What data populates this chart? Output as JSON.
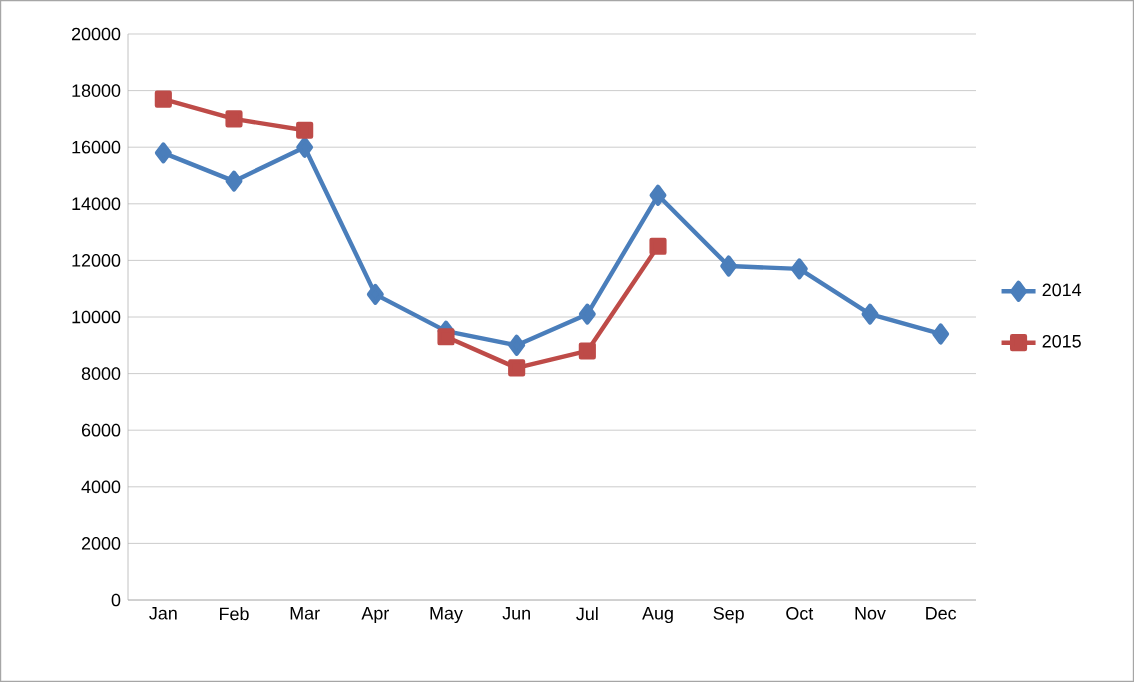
{
  "chart_data": {
    "type": "line",
    "categories": [
      "Jan",
      "Feb",
      "Mar",
      "Apr",
      "May",
      "Jun",
      "Jul",
      "Aug",
      "Sep",
      "Oct",
      "Nov",
      "Dec"
    ],
    "series": [
      {
        "name": "2014",
        "color": "#4a7ebb",
        "marker": "diamond",
        "values": [
          15800,
          14800,
          16000,
          10800,
          9500,
          9000,
          10100,
          14300,
          11800,
          11700,
          10100,
          9400
        ]
      },
      {
        "name": "2015",
        "color": "#be4b48",
        "marker": "square",
        "values": [
          17700,
          17000,
          16600,
          null,
          9300,
          8200,
          8800,
          12500,
          null,
          null,
          null,
          null
        ]
      }
    ],
    "ylim": [
      0,
      20000
    ],
    "yticks": [
      0,
      2000,
      4000,
      6000,
      8000,
      10000,
      12000,
      14000,
      16000,
      18000,
      20000
    ],
    "grid": "y",
    "legend": "right",
    "line_style": "solid"
  }
}
